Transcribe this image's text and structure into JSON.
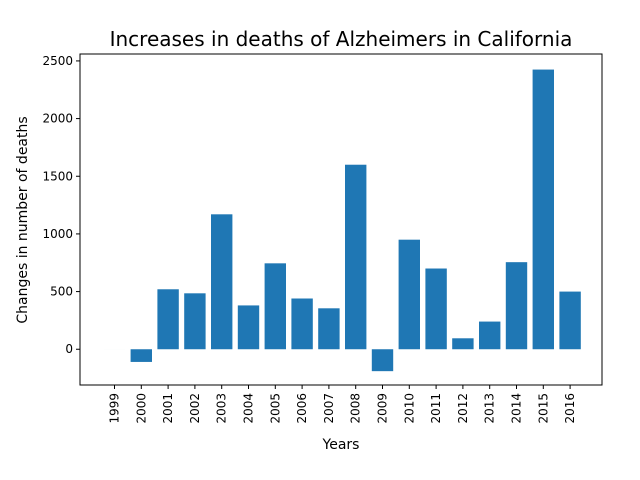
{
  "chart_data": {
    "type": "bar",
    "title": "Increases in deaths of Alzheimers in California",
    "xlabel": "Years",
    "ylabel": "Changes in number of deaths",
    "categories": [
      "1999",
      "2000",
      "2001",
      "2002",
      "2003",
      "2004",
      "2005",
      "2006",
      "2007",
      "2008",
      "2009",
      "2010",
      "2011",
      "2012",
      "2013",
      "2014",
      "2015",
      "2016"
    ],
    "values": [
      0,
      -110,
      520,
      485,
      1170,
      380,
      745,
      440,
      355,
      1600,
      -190,
      950,
      700,
      95,
      240,
      755,
      2425,
      500
    ],
    "ylim": [
      -310,
      2560
    ],
    "yticks": [
      0,
      500,
      1000,
      1500,
      2000,
      2500
    ],
    "bar_color": "#1f77b4",
    "grid": false,
    "legend": "none"
  }
}
